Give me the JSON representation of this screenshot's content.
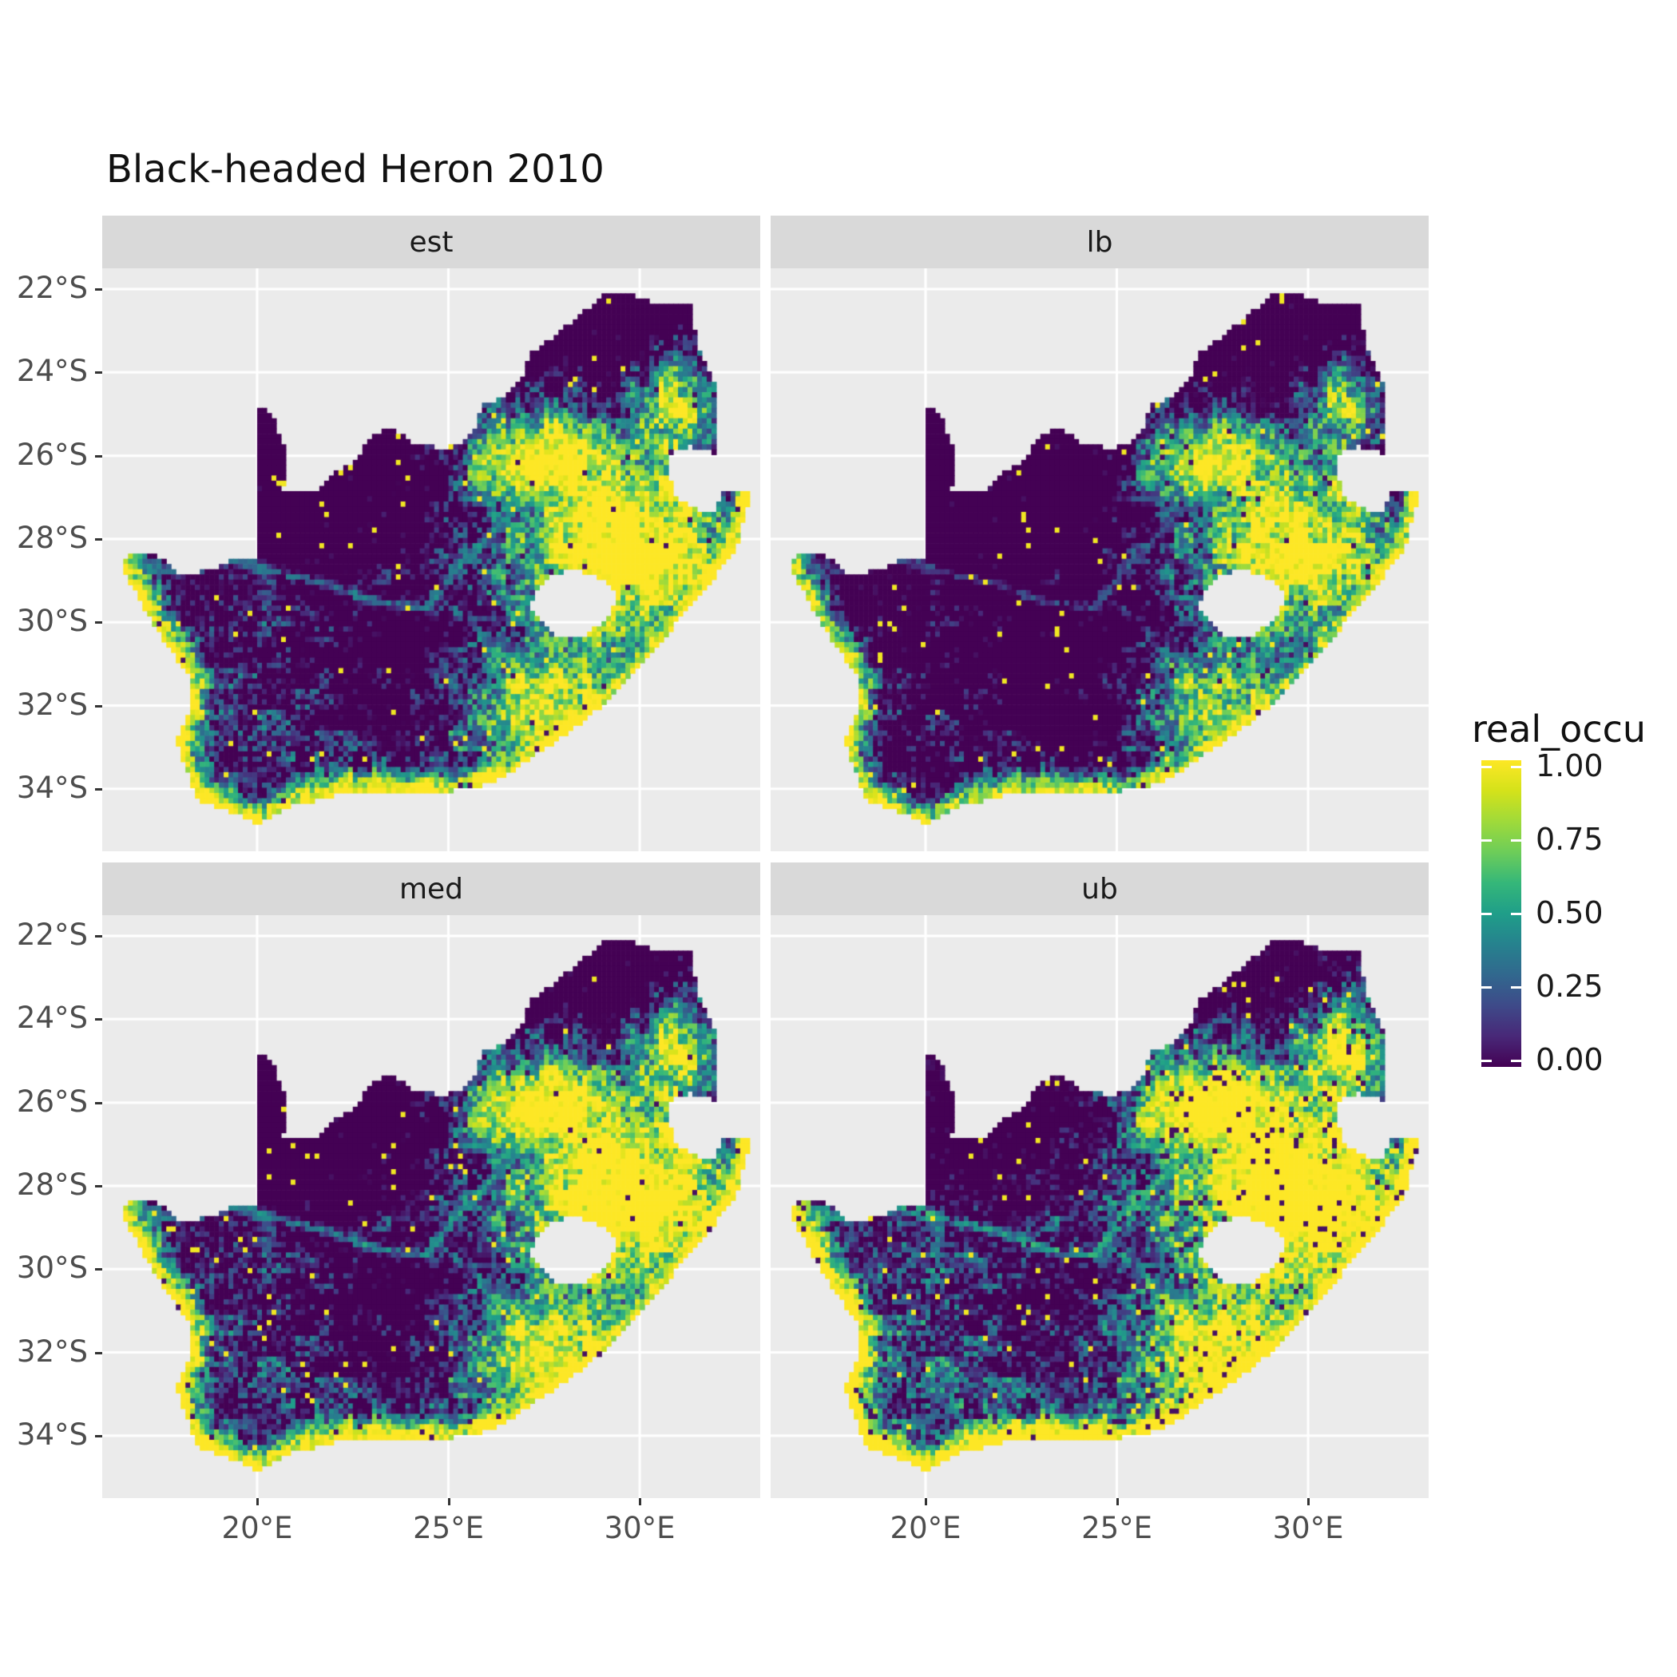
{
  "title": "Black-headed Heron 2010",
  "chart_data": {
    "type": "heatmap",
    "subtype": "faceted-raster-occupancy-map",
    "region": "South Africa",
    "facets": [
      {
        "label": "est",
        "offset": 0.0,
        "seed": 1,
        "dark_speckle": 0.012,
        "yellow_speckle": 0.012
      },
      {
        "label": "lb",
        "offset": -0.17,
        "seed": 2,
        "dark_speckle": 0.015,
        "yellow_speckle": 0.012
      },
      {
        "label": "med",
        "offset": 0.04,
        "seed": 3,
        "dark_speckle": 0.012,
        "yellow_speckle": 0.012
      },
      {
        "label": "ub",
        "offset": 0.17,
        "seed": 4,
        "dark_speckle": 0.06,
        "yellow_speckle": 0.018
      }
    ],
    "x_ticks": [
      "20°E",
      "25°E",
      "30°E"
    ],
    "x_tick_values": [
      20,
      25,
      30
    ],
    "y_ticks": [
      "22°S",
      "24°S",
      "26°S",
      "28°S",
      "30°S",
      "32°S",
      "34°S"
    ],
    "y_tick_values": [
      -22,
      -24,
      -26,
      -28,
      -30,
      -32,
      -34
    ],
    "lon_range": [
      15.95,
      33.15
    ],
    "lat_range": [
      -35.5,
      -21.5
    ],
    "legend": {
      "title": "real_occu",
      "labels": [
        "1.00",
        "0.75",
        "0.50",
        "0.25",
        "0.00"
      ],
      "values": [
        1,
        0.75,
        0.5,
        0.25,
        0
      ]
    },
    "colors": {
      "background": "#FFFFFF",
      "panel_bg": "#EBEBEB",
      "strip_bg": "#D9D9D9",
      "strip_text": "#1A1A1A",
      "grid": "#FFFFFF",
      "tick": "#333333",
      "tick_text": "#4D4D4D",
      "title_text": "#111111"
    },
    "viridis_stops": [
      "#440154",
      "#482878",
      "#3E4A89",
      "#31688E",
      "#26828E",
      "#1F9E89",
      "#35B779",
      "#6DCD59",
      "#9FDA3A",
      "#D4E21A",
      "#FDE725"
    ],
    "cell_deg": 0.125,
    "outline": [
      [
        16.45,
        -28.65
      ],
      [
        16.8,
        -28.3
      ],
      [
        17.4,
        -28.4
      ],
      [
        18.0,
        -28.9
      ],
      [
        18.7,
        -28.75
      ],
      [
        19.4,
        -28.5
      ],
      [
        19.99,
        -28.45
      ],
      [
        19.99,
        -24.77
      ],
      [
        20.4,
        -25.05
      ],
      [
        20.75,
        -25.9
      ],
      [
        20.68,
        -26.85
      ],
      [
        21.6,
        -26.85
      ],
      [
        22.05,
        -26.4
      ],
      [
        22.6,
        -26.1
      ],
      [
        22.9,
        -25.62
      ],
      [
        23.45,
        -25.3
      ],
      [
        24.0,
        -25.65
      ],
      [
        24.7,
        -25.82
      ],
      [
        25.35,
        -25.75
      ],
      [
        25.62,
        -25.48
      ],
      [
        25.9,
        -24.75
      ],
      [
        26.45,
        -24.62
      ],
      [
        26.85,
        -24.25
      ],
      [
        27.15,
        -23.55
      ],
      [
        27.75,
        -23.15
      ],
      [
        28.3,
        -22.7
      ],
      [
        29.05,
        -22.15
      ],
      [
        29.7,
        -22.1
      ],
      [
        30.3,
        -22.3
      ],
      [
        31.3,
        -22.35
      ],
      [
        31.55,
        -23.5
      ],
      [
        31.95,
        -24.3
      ],
      [
        32.02,
        -25.1
      ],
      [
        32.05,
        -25.64
      ],
      [
        31.98,
        -25.95
      ],
      [
        31.3,
        -25.78
      ],
      [
        30.82,
        -25.9
      ],
      [
        30.78,
        -26.5
      ],
      [
        30.95,
        -27.0
      ],
      [
        31.5,
        -27.32
      ],
      [
        31.97,
        -27.31
      ],
      [
        32.13,
        -26.85
      ],
      [
        32.89,
        -26.86
      ],
      [
        32.55,
        -28.2
      ],
      [
        32.0,
        -28.85
      ],
      [
        31.05,
        -29.9
      ],
      [
        30.3,
        -30.8
      ],
      [
        29.4,
        -31.7
      ],
      [
        28.5,
        -32.4
      ],
      [
        27.4,
        -33.1
      ],
      [
        26.4,
        -33.75
      ],
      [
        25.65,
        -34.0
      ],
      [
        24.2,
        -34.1
      ],
      [
        22.6,
        -34.05
      ],
      [
        20.9,
        -34.4
      ],
      [
        20.0,
        -34.82
      ],
      [
        18.45,
        -34.25
      ],
      [
        18.3,
        -33.9
      ],
      [
        17.85,
        -32.8
      ],
      [
        18.3,
        -32.1
      ],
      [
        18.2,
        -31.3
      ],
      [
        17.6,
        -30.5
      ],
      [
        17.05,
        -29.7
      ],
      [
        16.45,
        -28.65
      ]
    ],
    "lesotho_hole": [
      [
        27.1,
        -29.6
      ],
      [
        27.5,
        -28.95
      ],
      [
        28.25,
        -28.7
      ],
      [
        29.0,
        -28.95
      ],
      [
        29.4,
        -29.35
      ],
      [
        29.2,
        -29.9
      ],
      [
        28.45,
        -30.4
      ],
      [
        27.7,
        -30.3
      ]
    ],
    "coastline": [
      [
        32.89,
        -26.86
      ],
      [
        32.55,
        -28.2
      ],
      [
        32.0,
        -28.85
      ],
      [
        31.05,
        -29.9
      ],
      [
        30.3,
        -30.8
      ],
      [
        29.4,
        -31.7
      ],
      [
        28.5,
        -32.4
      ],
      [
        27.4,
        -33.1
      ],
      [
        26.4,
        -33.75
      ],
      [
        25.65,
        -34.0
      ],
      [
        24.2,
        -34.1
      ],
      [
        22.6,
        -34.05
      ],
      [
        20.9,
        -34.4
      ],
      [
        20.0,
        -34.82
      ],
      [
        18.45,
        -34.25
      ],
      [
        18.3,
        -33.9
      ],
      [
        17.85,
        -32.8
      ],
      [
        18.3,
        -32.1
      ],
      [
        18.2,
        -31.3
      ],
      [
        17.6,
        -30.5
      ],
      [
        17.05,
        -29.7
      ],
      [
        16.45,
        -28.65
      ]
    ],
    "rivers": [
      [
        [
          16.6,
          -28.6
        ],
        [
          18.0,
          -28.8
        ],
        [
          19.3,
          -28.5
        ],
        [
          20.5,
          -28.8
        ],
        [
          21.9,
          -29.1
        ],
        [
          23.2,
          -29.55
        ],
        [
          24.4,
          -29.65
        ]
      ],
      [
        [
          24.4,
          -29.65
        ],
        [
          25.3,
          -28.6
        ],
        [
          26.3,
          -27.7
        ],
        [
          27.0,
          -27.0
        ]
      ]
    ],
    "field_model": {
      "base": 0.1,
      "pos_blobs": [
        {
          "cx": 29.6,
          "cy": -28.2,
          "sx": 2.7,
          "sy": 2.3,
          "a": 1.15
        },
        {
          "cx": 27.6,
          "cy": -26.2,
          "sx": 2.1,
          "sy": 1.2,
          "a": 1.1
        },
        {
          "cx": 30.9,
          "cy": -24.7,
          "sx": 1.2,
          "sy": 1.6,
          "a": 0.8
        },
        {
          "cx": 27.6,
          "cy": -31.9,
          "sx": 2.0,
          "sy": 1.4,
          "a": 0.95
        }
      ],
      "neg_blobs": [
        {
          "cx": 29.2,
          "cy": -22.9,
          "sx": 2.7,
          "sy": 1.4,
          "a": 0.95
        },
        {
          "cx": 21.8,
          "cy": -26.2,
          "sx": 3.2,
          "sy": 2.7,
          "a": 0.9
        },
        {
          "cx": 23.3,
          "cy": -30.8,
          "sx": 2.7,
          "sy": 1.9,
          "a": 0.45
        }
      ],
      "coast_sigma": 0.42,
      "river_sigma": 0.13
    }
  }
}
